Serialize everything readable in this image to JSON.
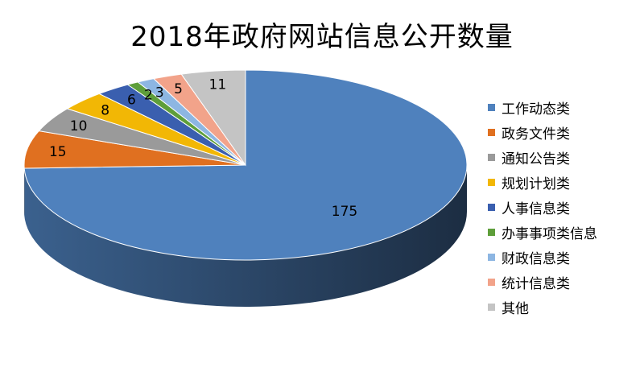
{
  "chart_data": {
    "type": "pie",
    "title": "2018年政府网站信息公开数量",
    "categories": [
      "工作动态类",
      "政务文件类",
      "通知公告类",
      "规划计划类",
      "人事信息类",
      "办事事项类信息",
      "财政信息类",
      "统计信息类",
      "其他"
    ],
    "values": [
      175,
      15,
      10,
      8,
      6,
      2,
      3,
      5,
      11
    ],
    "colors": [
      "#4F81BD",
      "#E07020",
      "#9A9A9A",
      "#F2B705",
      "#3A5FAF",
      "#5E9E3A",
      "#8DB6E2",
      "#F2A38A",
      "#C4C4C4"
    ],
    "legend_position": "right",
    "style": "3d"
  }
}
